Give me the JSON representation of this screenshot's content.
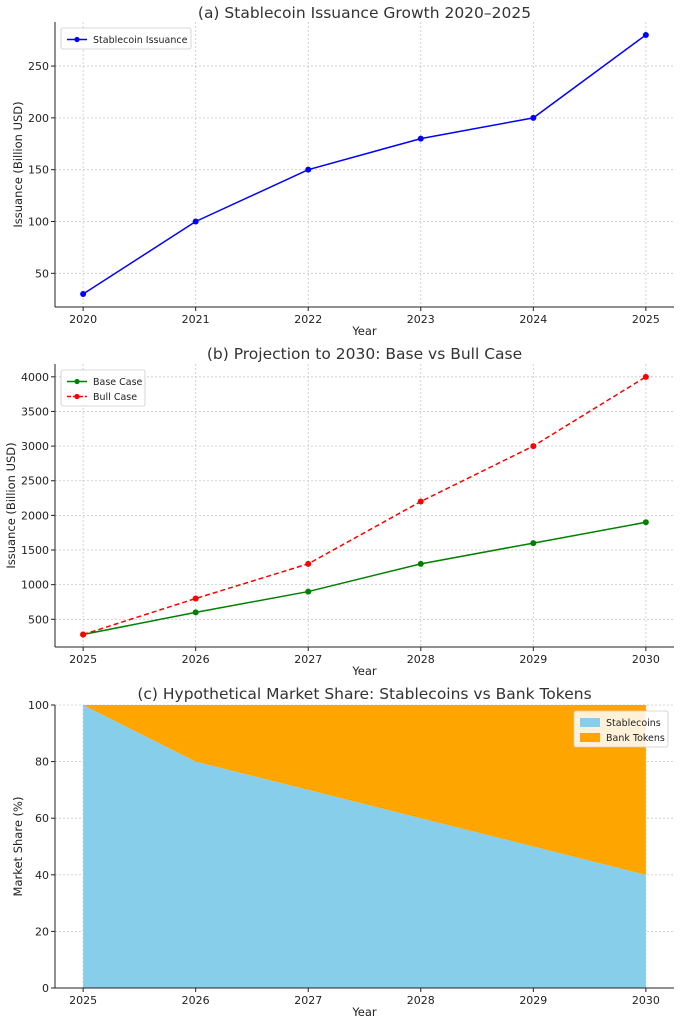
{
  "chart_data": [
    {
      "type": "line",
      "title": "(a) Stablecoin Issuance Growth 2020–2025",
      "xlabel": "Year",
      "ylabel": "Issuance (Billion USD)",
      "x": [
        2020,
        2021,
        2022,
        2023,
        2024,
        2025
      ],
      "xlim": [
        2019.75,
        2025.25
      ],
      "ylim": [
        17.5,
        292.5
      ],
      "yticks": [
        50,
        100,
        150,
        200,
        250
      ],
      "grid": true,
      "legend": "top-left",
      "series": [
        {
          "name": "Stablecoin Issuance",
          "values": [
            30,
            100,
            150,
            180,
            200,
            280
          ],
          "color": "#0000ff",
          "style": "solid"
        }
      ]
    },
    {
      "type": "line",
      "title": "(b) Projection to 2030: Base vs Bull Case",
      "xlabel": "Year",
      "ylabel": "Issuance (Billion USD)",
      "x": [
        2025,
        2026,
        2027,
        2028,
        2029,
        2030
      ],
      "xlim": [
        2024.75,
        2030.25
      ],
      "ylim": [
        100,
        4185
      ],
      "yticks": [
        500,
        1000,
        1500,
        2000,
        2500,
        3000,
        3500,
        4000
      ],
      "grid": true,
      "legend": "top-left",
      "series": [
        {
          "name": "Base Case",
          "values": [
            280,
            600,
            900,
            1300,
            1600,
            1900
          ],
          "color": "#008000",
          "style": "solid"
        },
        {
          "name": "Bull Case",
          "values": [
            280,
            800,
            1300,
            2200,
            3000,
            4000
          ],
          "color": "#ff0000",
          "style": "dashed"
        }
      ]
    },
    {
      "type": "area",
      "stacked": true,
      "title": "(c) Hypothetical Market Share: Stablecoins vs Bank Tokens",
      "xlabel": "Year",
      "ylabel": "Market Share (%)",
      "x": [
        2025,
        2026,
        2027,
        2028,
        2029,
        2030
      ],
      "xlim": [
        2024.75,
        2030.25
      ],
      "ylim": [
        0,
        100
      ],
      "yticks": [
        0,
        20,
        40,
        60,
        80,
        100
      ],
      "grid": true,
      "legend": "top-right",
      "series": [
        {
          "name": "Stablecoins",
          "values": [
            100,
            80,
            70,
            60,
            50,
            40
          ],
          "color": "#87ceeb"
        },
        {
          "name": "Bank Tokens",
          "values": [
            0,
            20,
            30,
            40,
            50,
            60
          ],
          "color": "#ffa500"
        }
      ]
    }
  ]
}
